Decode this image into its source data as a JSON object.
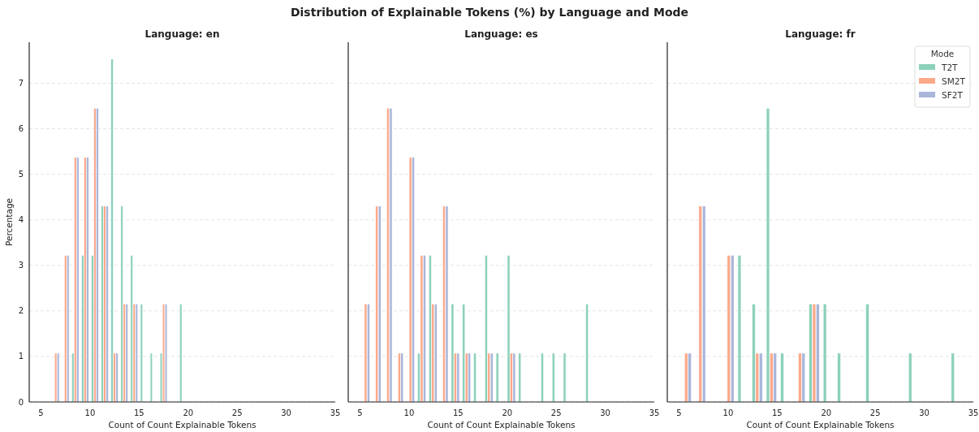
{
  "chart_data": [
    {
      "type": "histogram",
      "title": "Language: en",
      "xlabel": "Count of Count Explainable Tokens",
      "ylabel": "Percentage",
      "annotations": [
        "Distribution of Explainable Tokens (%) by Language and Mode"
      ],
      "bins": [
        6,
        7,
        8,
        9,
        10,
        11,
        12,
        13,
        14,
        15,
        16,
        17,
        18,
        19,
        20
      ],
      "series": [
        {
          "color": "#8cd1ba",
          "values": [
            0,
            0,
            1.07,
            3.22,
            3.22,
            4.3,
            7.53,
            4.3,
            3.22,
            2.15,
            1.07,
            1.07,
            0,
            2.15
          ]
        },
        {
          "color": "#fca98a",
          "values": [
            1.07,
            3.22,
            5.37,
            5.37,
            6.45,
            4.3,
            1.07,
            2.15,
            2.15,
            0,
            0,
            2.15,
            0,
            0
          ]
        },
        {
          "color": "#a9b6da",
          "values": [
            1.07,
            3.22,
            5.37,
            5.37,
            6.45,
            4.3,
            1.07,
            2.15,
            2.15,
            0,
            0,
            2.15,
            0,
            0
          ]
        }
      ],
      "xlim": [
        3.8,
        35
      ],
      "xticks": [
        5,
        10,
        15,
        20,
        25,
        30,
        35
      ],
      "ylim": [
        0,
        7.9
      ],
      "yticks": [
        0,
        1,
        2,
        3,
        4,
        5,
        6,
        7
      ],
      "grid": "y",
      "legend": false
    },
    {
      "type": "histogram",
      "title": "Language: es",
      "xlabel": "Count of Count Explainable Tokens",
      "bins": [
        5,
        6.14,
        7.29,
        8.43,
        9.57,
        10.71,
        11.86,
        13,
        14.14,
        15.29,
        16.43,
        17.57,
        18.71,
        19.86,
        21,
        22.14,
        23.29,
        24.43,
        25.57,
        26.71,
        27.86,
        29
      ],
      "series": [
        {
          "color": "#8cd1ba",
          "values": [
            0,
            0,
            0,
            0,
            0,
            1.07,
            3.22,
            null,
            2.15,
            2.15,
            1.07,
            3.22,
            1.07,
            3.22,
            1.07,
            0,
            1.07,
            1.07,
            1.07,
            0,
            2.15
          ]
        },
        {
          "color": "#fca98a",
          "values": [
            2.15,
            4.3,
            6.45,
            1.07,
            5.37,
            3.22,
            2.15,
            4.3,
            1.07,
            1.07,
            0,
            1.07,
            0,
            1.07,
            0,
            0,
            0,
            0,
            0,
            0,
            0
          ]
        },
        {
          "color": "#a9b6da",
          "values": [
            2.15,
            4.3,
            6.45,
            1.07,
            5.37,
            3.22,
            2.15,
            4.3,
            1.07,
            1.07,
            0,
            1.07,
            0,
            1.07,
            0,
            0,
            0,
            0,
            0,
            0,
            0
          ]
        }
      ],
      "xlim": [
        3.8,
        35
      ],
      "xticks": [
        5,
        10,
        15,
        20,
        25,
        30,
        35
      ],
      "ylim": [
        0,
        7.9
      ],
      "yticks": [
        0,
        1,
        2,
        3,
        4,
        5,
        6,
        7
      ],
      "grid": "y",
      "legend": false,
      "tick_labels": "x"
    },
    {
      "type": "histogram",
      "title": "Language: fr",
      "xlabel": "Count of Count Explainable Tokens",
      "legend_title": "Mode",
      "bins": [
        5,
        6.45,
        7.9,
        9.35,
        10.8,
        12.25,
        13.7,
        15.15,
        16.6,
        18.05,
        19.5,
        20.95,
        22.4,
        23.85,
        25.3,
        26.75,
        28.2,
        29.65,
        31.1,
        32.55,
        34
      ],
      "series": [
        {
          "name": "T2T",
          "color": "#8cd1ba",
          "values": [
            0,
            0,
            0,
            0,
            3.22,
            2.15,
            6.45,
            1.07,
            null,
            2.15,
            2.15,
            1.07,
            0,
            2.15,
            0,
            0,
            1.07,
            0,
            0,
            1.07
          ]
        },
        {
          "name": "SM2T",
          "color": "#fca98a",
          "values": [
            1.07,
            4.3,
            null,
            3.22,
            null,
            1.07,
            1.07,
            0,
            1.07,
            2.15,
            0,
            0,
            0,
            0,
            0,
            0,
            0,
            0,
            0,
            0
          ]
        },
        {
          "name": "SF2T",
          "color": "#a9b6da",
          "values": [
            1.07,
            4.3,
            null,
            3.22,
            null,
            1.07,
            1.07,
            0,
            1.07,
            2.15,
            0,
            0,
            0,
            0,
            0,
            0,
            0,
            0,
            0,
            0
          ]
        }
      ],
      "xlim": [
        3.8,
        35
      ],
      "xticks": [
        5,
        10,
        15,
        20,
        25,
        30,
        35
      ],
      "ylim": [
        0,
        7.9
      ],
      "yticks": [
        0,
        1,
        2,
        3,
        4,
        5,
        6,
        7
      ],
      "grid": "y",
      "legend": "top right",
      "tick_labels": "x"
    }
  ]
}
